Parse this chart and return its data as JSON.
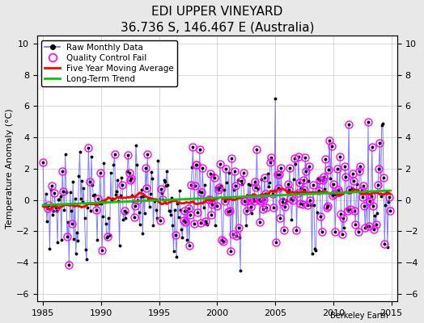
{
  "title": "EDI UPPER VINEYARD",
  "subtitle": "36.736 S, 146.467 E (Australia)",
  "ylabel": "Temperature Anomaly (°C)",
  "credit": "Berkeley Earth",
  "xlim": [
    1984.5,
    2015.5
  ],
  "ylim": [
    -6.5,
    10.5
  ],
  "yticks": [
    -6,
    -4,
    -2,
    0,
    2,
    4,
    6,
    8,
    10
  ],
  "xticks": [
    1985,
    1990,
    1995,
    2000,
    2005,
    2010,
    2015
  ],
  "bg_color": "#e8e8e8",
  "plot_bg_color": "#ffffff",
  "raw_line_color": "#6666ff",
  "raw_marker_color": "#000000",
  "qc_fail_color": "#ff00ff",
  "moving_avg_color": "#ff0000",
  "trend_color": "#00cc00",
  "title_fontsize": 11,
  "subtitle_fontsize": 9,
  "ylabel_fontsize": 8,
  "tick_fontsize": 8,
  "legend_fontsize": 7.5,
  "credit_fontsize": 7
}
